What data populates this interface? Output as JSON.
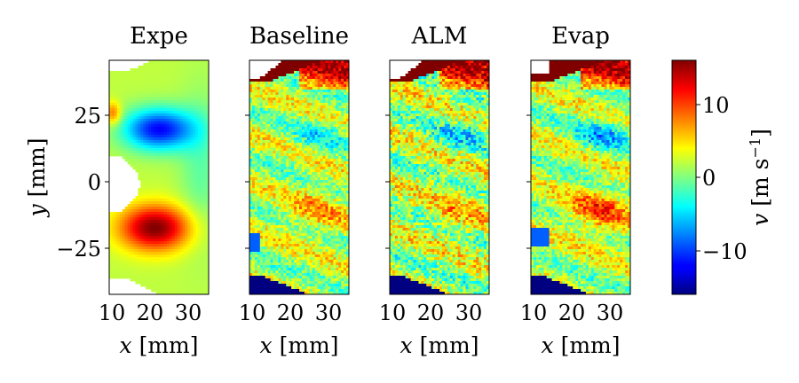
{
  "chart_data": {
    "type": "heatmap",
    "panels": [
      {
        "title": "Expe",
        "field": "expe"
      },
      {
        "title": "Baseline",
        "field": "baseline"
      },
      {
        "title": "ALM",
        "field": "alm"
      },
      {
        "title": "Evap",
        "field": "evap"
      }
    ],
    "xlabel": {
      "symbol": "x",
      "unit": "[mm]"
    },
    "ylabel": {
      "symbol": "y",
      "unit": "[mm]"
    },
    "xlim": [
      9,
      35
    ],
    "ylim": [
      -43,
      45
    ],
    "xticks": [
      10,
      20,
      30
    ],
    "yticks": [
      25,
      0,
      -25
    ],
    "ytick_labels": [
      "25",
      "0",
      "−25"
    ],
    "colorbar": {
      "label": "v [m s⁻¹]",
      "symbol": "v",
      "unit": "[m s",
      "unit_sup": "−1",
      "unit_close": "]",
      "colormap": "jet",
      "vmin": -16,
      "vmax": 16,
      "ticks": [
        10,
        0,
        -10
      ],
      "tick_labels": [
        "10",
        "0",
        "−10"
      ]
    },
    "features": [
      {
        "panel": "Expe",
        "description": "negative v lobe",
        "x": 22,
        "y": 19,
        "v": -14
      },
      {
        "panel": "Expe",
        "description": "positive v lobe",
        "x": 21,
        "y": -18,
        "v": 14
      }
    ]
  }
}
